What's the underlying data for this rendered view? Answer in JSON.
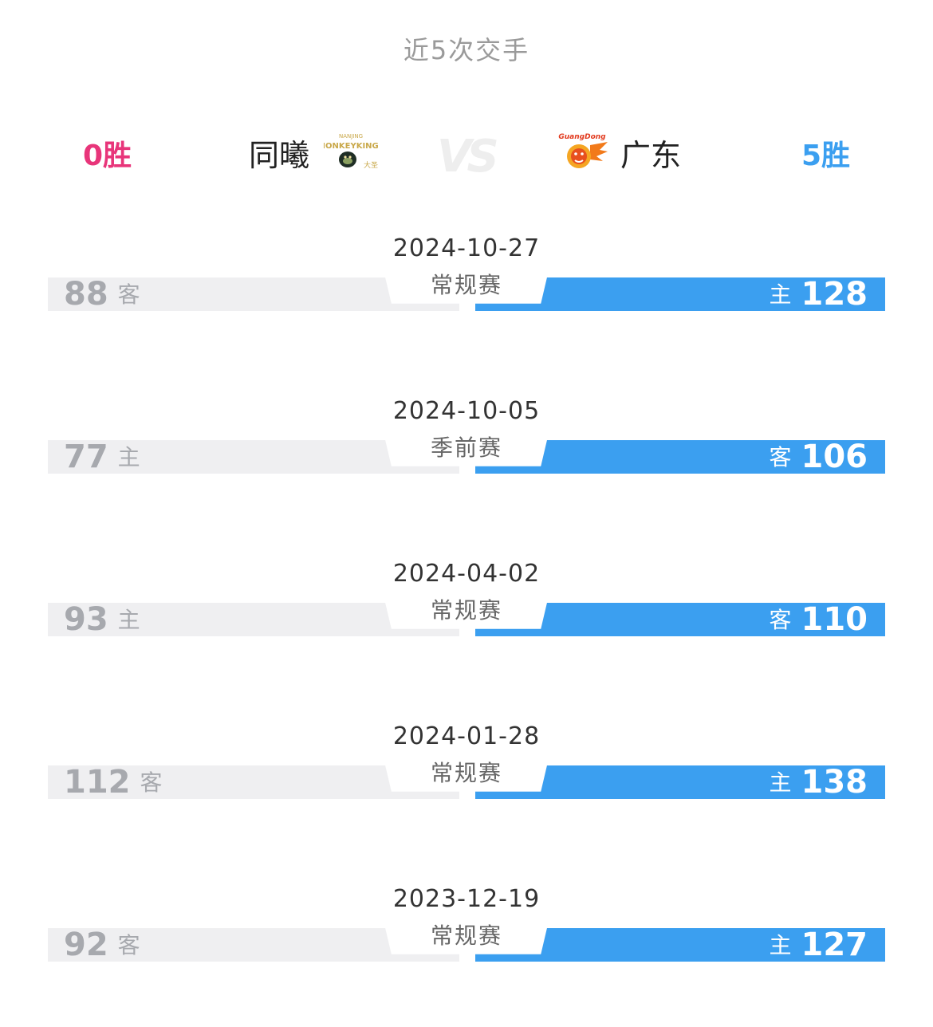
{
  "title": "近5次交手",
  "header": {
    "left_wins": "0胜",
    "left_team": "同曦",
    "left_logo_icon": "nanjing-monkey-kings-logo-icon",
    "vs": "VS",
    "right_team": "广东",
    "right_logo_icon": "guangdong-tigers-logo-icon",
    "right_wins": "5胜"
  },
  "matches": [
    {
      "date": "2024-10-27",
      "stage": "常规赛",
      "left_score": "88",
      "left_side": "客",
      "right_side": "主",
      "right_score": "128"
    },
    {
      "date": "2024-10-05",
      "stage": "季前赛",
      "left_score": "77",
      "left_side": "主",
      "right_side": "客",
      "right_score": "106"
    },
    {
      "date": "2024-04-02",
      "stage": "常规赛",
      "left_score": "93",
      "left_side": "主",
      "right_side": "客",
      "right_score": "110"
    },
    {
      "date": "2024-01-28",
      "stage": "常规赛",
      "left_score": "112",
      "left_side": "客",
      "right_side": "主",
      "right_score": "138"
    },
    {
      "date": "2023-12-19",
      "stage": "常规赛",
      "left_score": "92",
      "left_side": "客",
      "right_side": "主",
      "right_score": "127"
    }
  ],
  "colors": {
    "loser_pink": "#e8357a",
    "winner_blue": "#3b9ff0",
    "bar_grey": "#efeff1"
  }
}
